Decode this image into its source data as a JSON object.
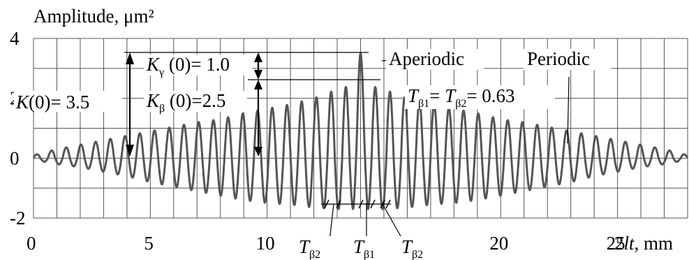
{
  "chart_data": {
    "type": "line",
    "ylabel": "Amplitude, μm²",
    "xlabel_prefix": "2",
    "xlabel_var": "lt",
    "xlabel_unit": ", mm",
    "xlim": [
      0,
      28
    ],
    "ylim": [
      -2,
      4
    ],
    "x_ticks": [
      "0",
      "5",
      "10",
      "15",
      "20",
      "25"
    ],
    "x_tick_values": [
      0,
      5,
      10,
      15,
      20,
      25
    ],
    "y_ticks": [
      "4",
      "2",
      "0",
      "-2"
    ],
    "y_tick_values": [
      4,
      2,
      0,
      -2
    ],
    "grid": true,
    "series": [
      {
        "period": 0.63,
        "center": 14,
        "baseline": 0,
        "peak_upper": 2.5,
        "peak_lower": -1.7,
        "aperiodic_peak": 3.5,
        "envelope_sigma": 7.8,
        "color": "#555555",
        "x": [
          0,
          1,
          2,
          3,
          4,
          5,
          6,
          7,
          8,
          9,
          10,
          11,
          12,
          13,
          14,
          15,
          16,
          17,
          18,
          19,
          20,
          21,
          22,
          23,
          24,
          25,
          26,
          27,
          28
        ],
        "upper_envelope": [
          0.1,
          0.3,
          0.45,
          0.6,
          0.75,
          0.9,
          1.05,
          1.2,
          1.3,
          1.5,
          1.65,
          1.8,
          2.0,
          2.3,
          2.5,
          2.3,
          2.0,
          1.8,
          1.65,
          1.5,
          1.3,
          1.2,
          1.05,
          0.9,
          0.75,
          0.6,
          0.45,
          0.3,
          0.1
        ],
        "lower_envelope": [
          -0.05,
          -0.2,
          -0.3,
          -0.45,
          -0.6,
          -0.8,
          -0.95,
          -1.1,
          -1.25,
          -1.4,
          -1.5,
          -1.55,
          -1.65,
          -1.7,
          -1.7,
          -1.7,
          -1.65,
          -1.55,
          -1.5,
          -1.4,
          -1.25,
          -1.1,
          -0.95,
          -0.8,
          -0.6,
          -0.45,
          -0.3,
          -0.2,
          -0.05
        ]
      }
    ],
    "annotations": {
      "k0": {
        "var": "K",
        "rest": "(0)= 3.5",
        "value": 3.5
      },
      "kgamma": {
        "var": "K",
        "sub": "γ",
        "rest": " (0)= 1.0",
        "value": 1.0
      },
      "kbeta": {
        "var": "K",
        "sub": "β",
        "rest": " (0)=2.5",
        "value": 2.5
      },
      "aperiodic": "Aperiodic",
      "periodic": "Periodic",
      "period_eq": {
        "var": "T",
        "sub1": "β1",
        "eq": "= ",
        "sub2": "β2",
        "rest": "= 0.63"
      },
      "bottom_labels": [
        {
          "var": "T",
          "sub": "β2"
        },
        {
          "var": "T",
          "sub": "β1"
        },
        {
          "var": "T",
          "sub": "β2"
        }
      ]
    }
  }
}
